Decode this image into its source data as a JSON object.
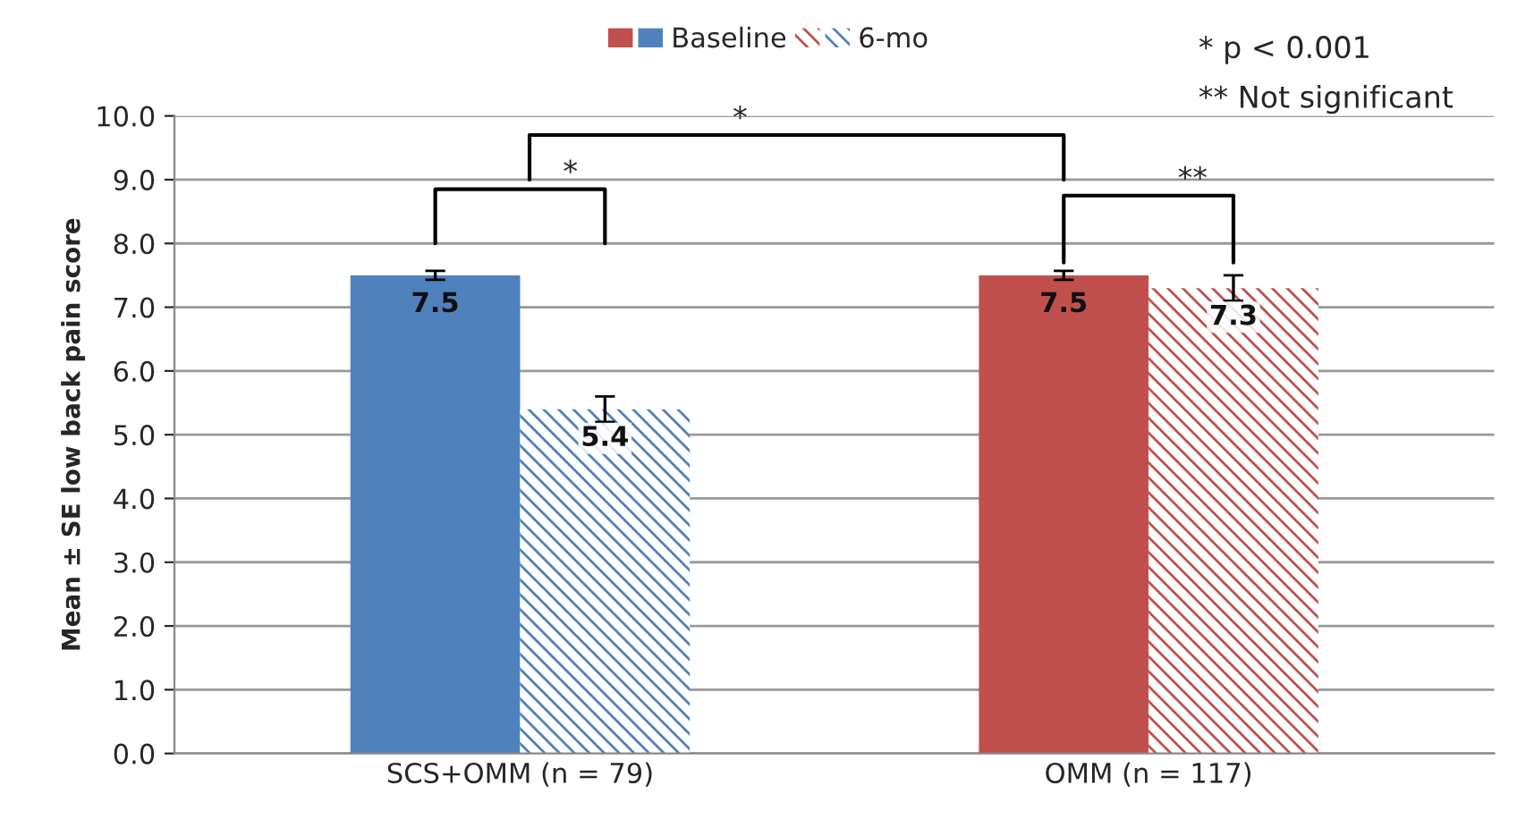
{
  "chart_data": {
    "type": "bar",
    "ylabel": "Mean ± SE low back pain score",
    "categories": [
      "SCS+OMM (n = 79)",
      "OMM (n = 117)"
    ],
    "series": [
      {
        "name": "Baseline",
        "colors": [
          "#4f81bd",
          "#c0504d"
        ],
        "values": [
          7.5,
          7.5
        ],
        "errors": [
          0.07,
          0.07
        ]
      },
      {
        "name": "6-mo",
        "colors": [
          "#4f81bd",
          "#c0504d"
        ],
        "values": [
          5.4,
          7.3
        ],
        "errors": [
          0.2,
          0.2
        ]
      }
    ],
    "ylim": [
      0,
      10
    ],
    "yticks": [
      {
        "value": 0,
        "label": "0.0"
      },
      {
        "value": 1,
        "label": "1.0"
      },
      {
        "value": 2,
        "label": "2.0"
      },
      {
        "value": 3,
        "label": "3.0"
      },
      {
        "value": 4,
        "label": "4.0"
      },
      {
        "value": 5,
        "label": "5.0"
      },
      {
        "value": 6,
        "label": "6.0"
      },
      {
        "value": 7,
        "label": "7.0"
      },
      {
        "value": 8,
        "label": "8.0"
      },
      {
        "value": 9,
        "label": "9.0"
      },
      {
        "value": 10,
        "label": "10.0"
      }
    ],
    "grid": "y",
    "legend": "top",
    "data_labels": true,
    "annotations": [
      "* p < 0.001",
      "** Not significant",
      "*",
      "*",
      "**"
    ]
  }
}
